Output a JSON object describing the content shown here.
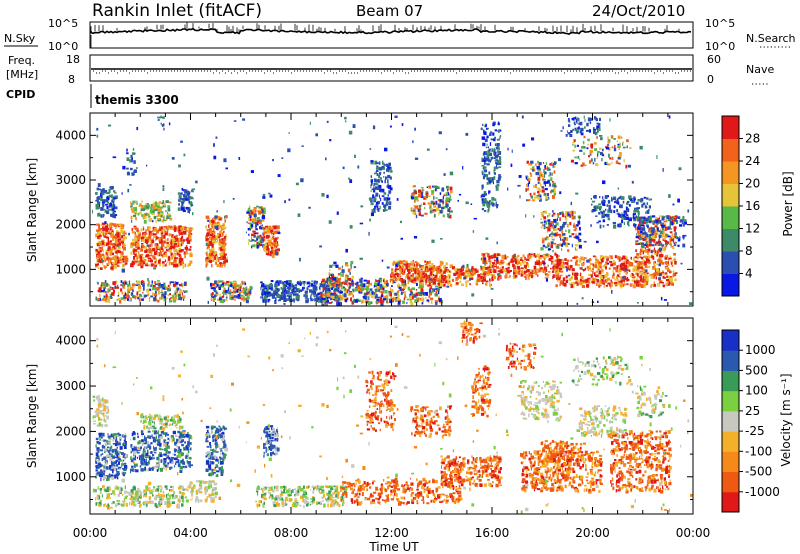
{
  "header": {
    "station": "Rankin Inlet (fitACF)",
    "beam": "Beam 07",
    "date": "24/Oct/2010"
  },
  "sky_panel": {
    "left_label": "N.Sky",
    "right_label": "N.Search",
    "left_ticks": [
      "10^5",
      "10^0"
    ],
    "right_ticks": [
      "10^5",
      "10^0"
    ]
  },
  "freq_panel": {
    "left_label": "Freq.",
    "left_unit": "[MHz]",
    "right_label": "Nave",
    "left_ticks": [
      "18",
      "8"
    ],
    "right_ticks": [
      "60",
      "0"
    ]
  },
  "cpid_panel": {
    "label": "CPID",
    "value": "themis 3300"
  },
  "colors": {
    "power": [
      "#0a18e6",
      "#2a4fb0",
      "#3d8a68",
      "#58b848",
      "#e6c43a",
      "#f59622",
      "#f2621c",
      "#e01818"
    ],
    "velocity": [
      "#e01818",
      "#ee5a12",
      "#f58a1a",
      "#f5b02a",
      "#c8c8c0",
      "#7ad040",
      "#3a9a58",
      "#2a5ab0",
      "#1830c8"
    ]
  },
  "chart_data": [
    {
      "type": "heatmap",
      "name": "power-panel",
      "ylabel": "Slant Range [km]",
      "yticks": [
        "4000",
        "3000",
        "2000",
        "1000"
      ],
      "ytick_values": [
        4000,
        3000,
        2000,
        1000
      ],
      "ylim": [
        180,
        4500
      ],
      "xlim": [
        0,
        24
      ],
      "colorbar": {
        "label": "Power [dB]",
        "ticks": [
          "28",
          "24",
          "20",
          "16",
          "12",
          "8",
          "4"
        ],
        "tick_values": [
          28,
          24,
          20,
          16,
          12,
          8,
          4
        ],
        "range": [
          0,
          32
        ]
      }
    },
    {
      "type": "heatmap",
      "name": "velocity-panel",
      "ylabel": "Slant Range [km]",
      "yticks": [
        "4000",
        "3000",
        "2000",
        "1000"
      ],
      "ytick_values": [
        4000,
        3000,
        2000,
        1000
      ],
      "ylim": [
        180,
        4500
      ],
      "xlim": [
        0,
        24
      ],
      "xlabel": "Time UT",
      "xticks": [
        "00:00",
        "04:00",
        "08:00",
        "12:00",
        "16:00",
        "20:00",
        "00:00"
      ],
      "xtick_values": [
        0,
        4,
        8,
        12,
        16,
        20,
        24
      ],
      "colorbar": {
        "label": "Velocity [m s⁻¹]",
        "ticks": [
          "1000",
          "500",
          "100",
          "25",
          "-25",
          "-100",
          "-500",
          "-1000"
        ]
      }
    }
  ]
}
